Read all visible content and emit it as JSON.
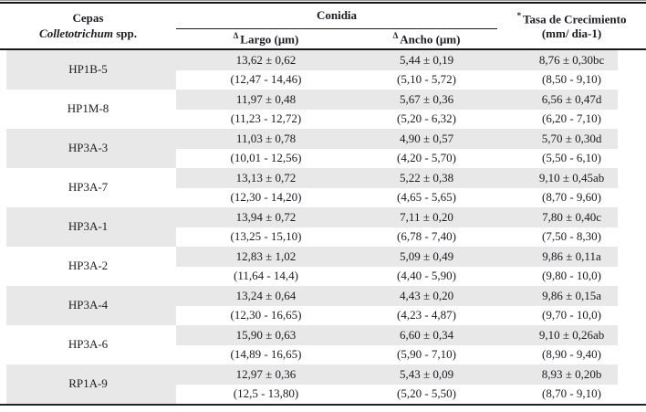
{
  "header": {
    "cepas": "Cepas",
    "genus": "Colletotrichum",
    "spp": "spp.",
    "conidia": "Conidia",
    "delta_sup": "Δ",
    "largo_label": "Largo (μm)",
    "ancho_label": "Ancho (μm)",
    "asterisk_sup": "*",
    "tasa_line1": "Tasa de Crecimiento",
    "tasa_line2": "(mm/ dia-1)"
  },
  "colors": {
    "row_shade": "#e8e8e8",
    "rule": "#191919",
    "text": "#1b1b22"
  },
  "rows": [
    {
      "cepa": "HP1B-5",
      "largo": "13,62 ± 0,62",
      "largo_range": "(12,47 - 14,46)",
      "ancho": "5,44 ± 0,19",
      "ancho_range": "(5,10 - 5,72)",
      "tasa": "8,76 ± 0,30bc",
      "tasa_range": "(8,50 - 9,10)"
    },
    {
      "cepa": "HP1M-8",
      "largo": "11,97 ± 0,48",
      "largo_range": "(11,23 - 12,72)",
      "ancho": "5,67 ± 0,36",
      "ancho_range": "(5,20 - 6,32)",
      "tasa": "6,56 ± 0,47d",
      "tasa_range": "(6,20 - 7,10)"
    },
    {
      "cepa": "HP3A-3",
      "largo": "11,03 ± 0,78",
      "largo_range": "(10,01 - 12,56)",
      "ancho": "4,90 ± 0,57",
      "ancho_range": "(4,20 - 5,70)",
      "tasa": "5,70 ± 0,30d",
      "tasa_range": "(5,50 - 6,10)"
    },
    {
      "cepa": "HP3A-7",
      "largo": "13,13 ± 0,72",
      "largo_range": "(12,30 - 14,20)",
      "ancho": "5,22 ± 0,38",
      "ancho_range": "(4,65 - 5,65)",
      "tasa": "9,10 ± 0,45ab",
      "tasa_range": "(8,70 - 9,60)"
    },
    {
      "cepa": "HP3A-1",
      "largo": "13,94 ± 0,72",
      "largo_range": "(13,25 - 15,10)",
      "ancho": "7,11 ± 0,20",
      "ancho_range": "(6,78 - 7,40)",
      "tasa": "7,80 ± 0,40c",
      "tasa_range": "(7,50 - 8,30)"
    },
    {
      "cepa": "HP3A-2",
      "largo": "12,83 ± 1,02",
      "largo_range": "(11,64 - 14,4)",
      "ancho": "5,09 ± 0,49",
      "ancho_range": "(4,40 - 5,90)",
      "tasa": "9,86 ± 0,11a",
      "tasa_range": "(9,80 - 10,0)"
    },
    {
      "cepa": "HP3A-4",
      "largo": "13,24 ± 0,64",
      "largo_range": "(12,30 - 16,65)",
      "ancho": "4,43 ± 0,20",
      "ancho_range": "(4,23 - 4,87)",
      "tasa": "9,86 ± 0,15a",
      "tasa_range": "(9,70 - 10,0)"
    },
    {
      "cepa": "HP3A-6",
      "largo": "15,90 ± 0,63",
      "largo_range": "(14,89 - 16,65)",
      "ancho": "6,60 ± 0,34",
      "ancho_range": "(5,90 - 7,10)",
      "tasa": "9,10 ± 0,26ab",
      "tasa_range": "(8,90 - 9,40)"
    },
    {
      "cepa": "RP1A-9",
      "largo": "12,97 ± 0,36",
      "largo_range": "(12,5 - 13,80)",
      "ancho": "5,43 ± 0,09",
      "ancho_range": "(5,20 - 5,50)",
      "tasa": "8,93 ± 0,20b",
      "tasa_range": "(8,70 - 9,10)"
    }
  ]
}
